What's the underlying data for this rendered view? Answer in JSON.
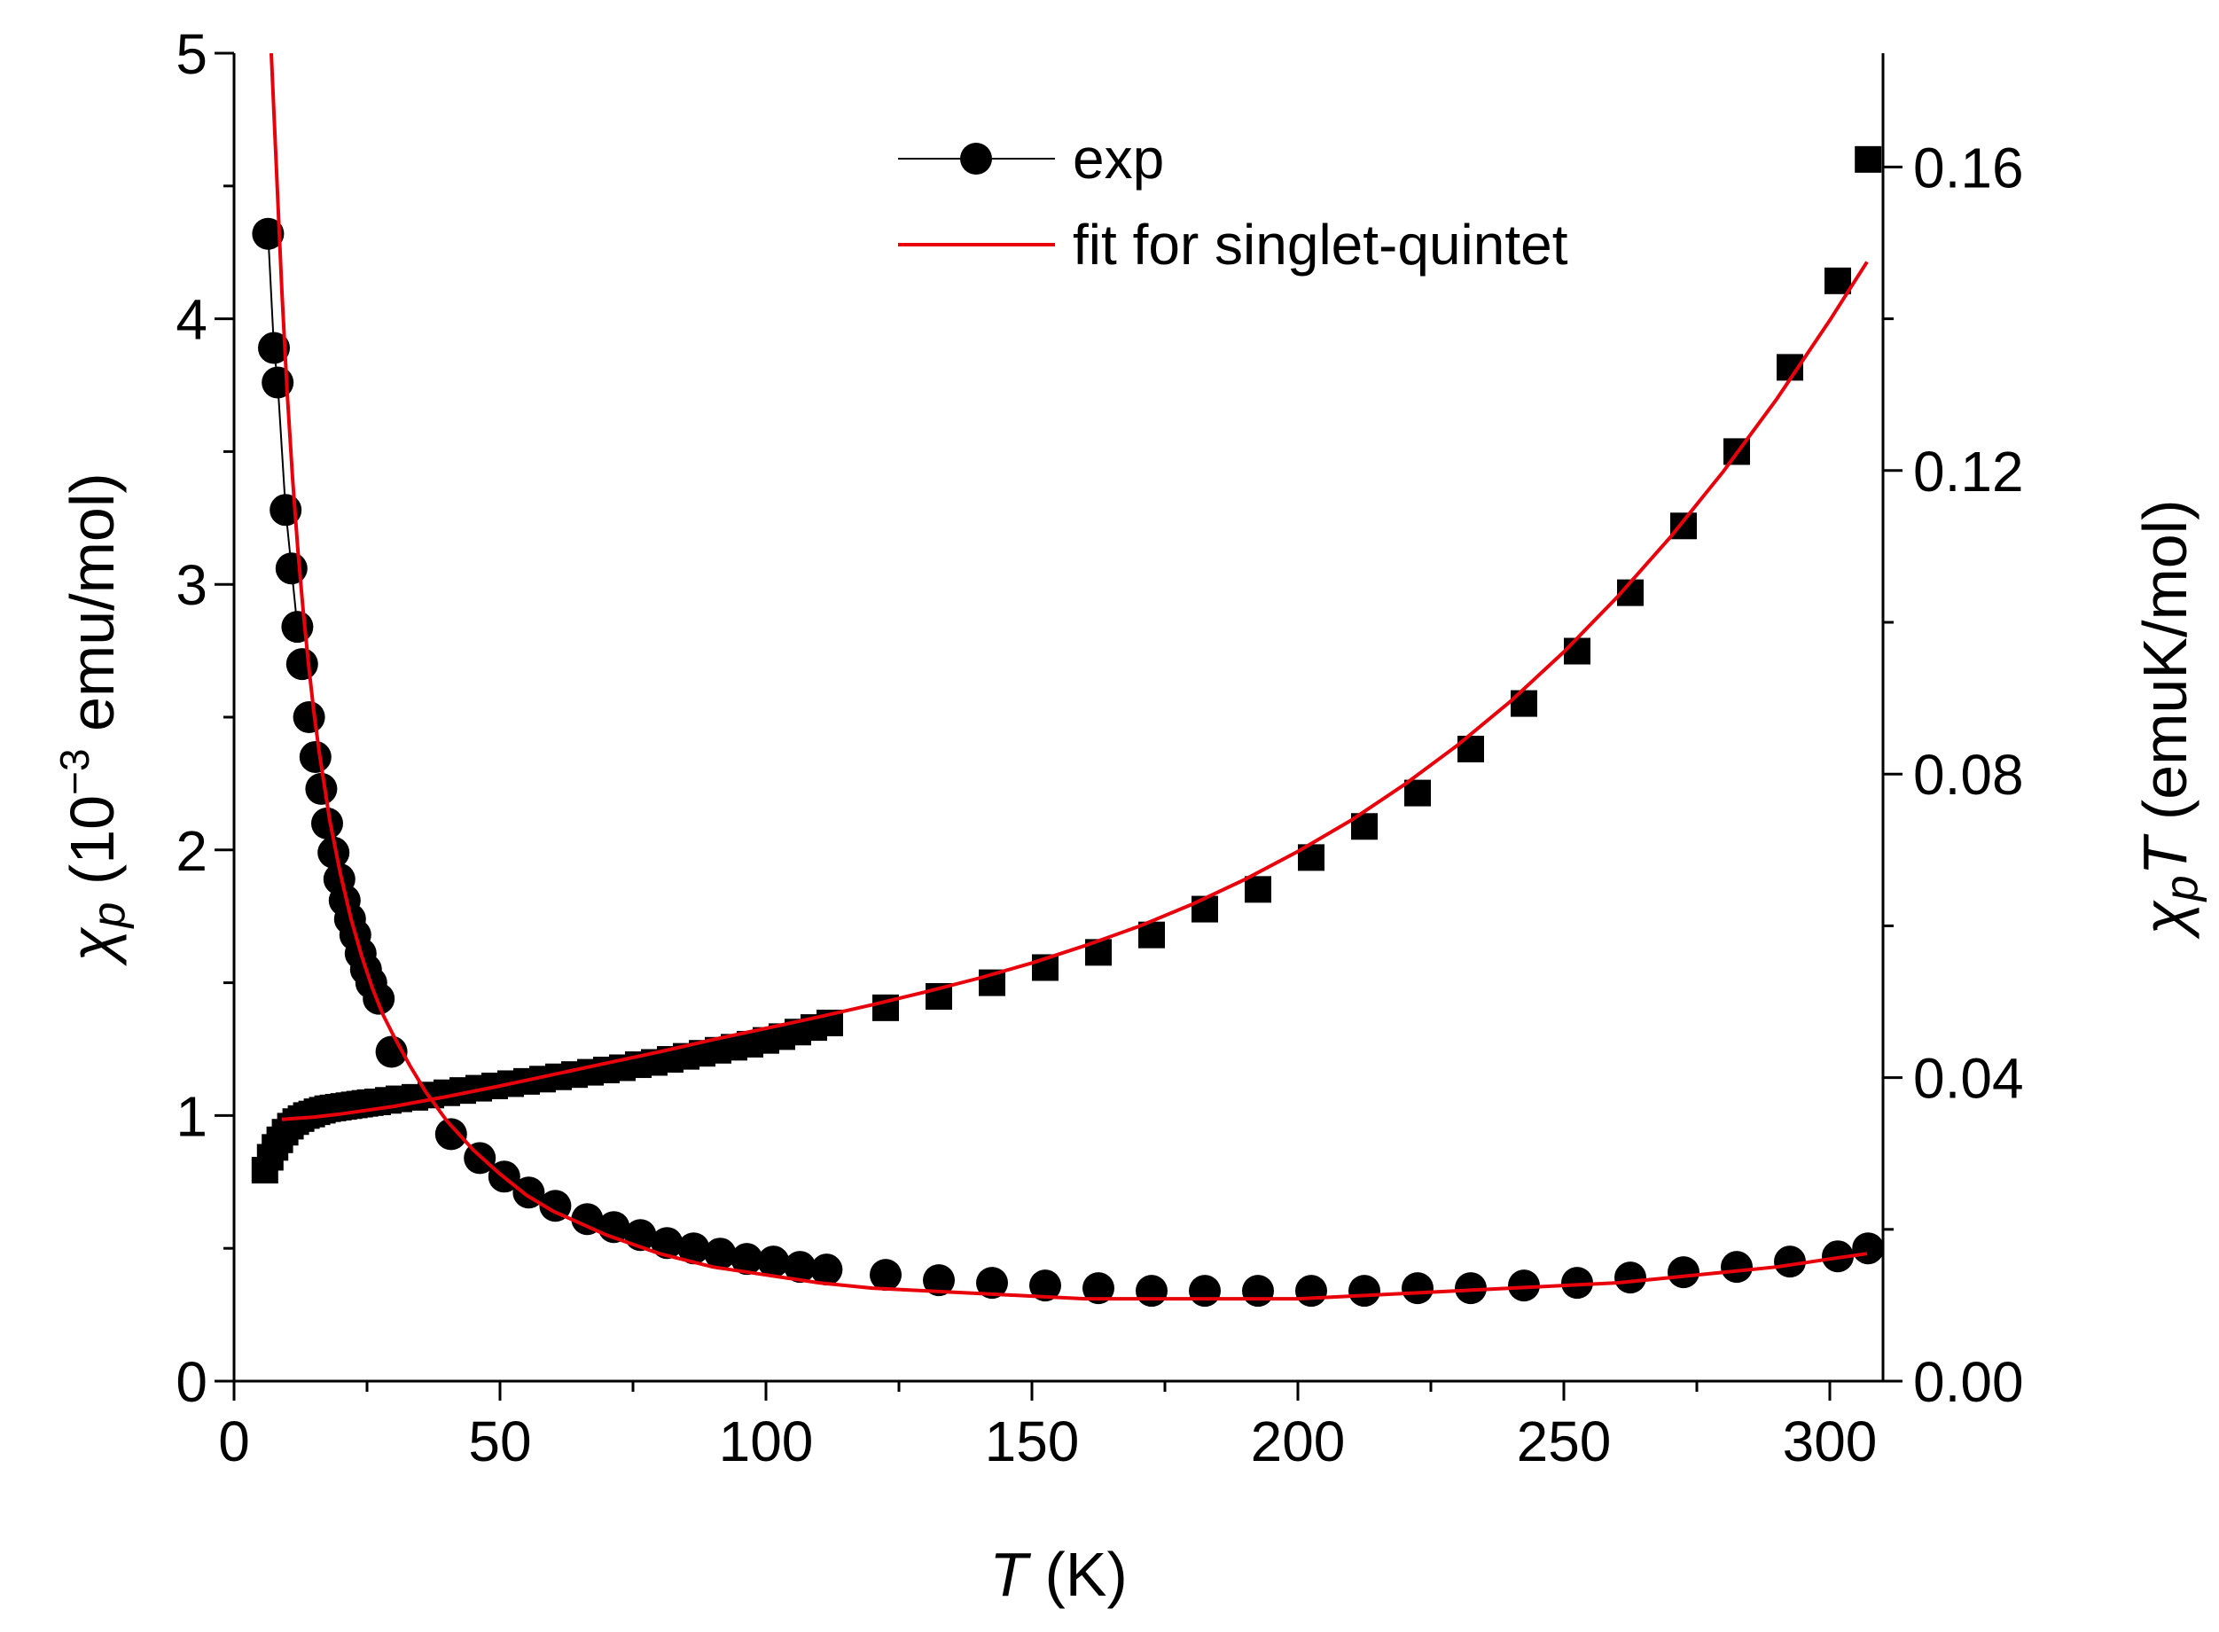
{
  "chart_data": {
    "type": "scatter",
    "xlabel": "T (K)",
    "xlabel_italic": "T",
    "xlabel_unit": " (K)",
    "ylabel_left": "χp (10⁻³ emu/mol)",
    "ylabel_left_symbol": "χ",
    "ylabel_left_sub": "p",
    "ylabel_left_unit": " (10",
    "ylabel_left_exp": "−3",
    "ylabel_left_unit2": " emu/mol)",
    "ylabel_right": "χpT (emuK/mol)",
    "ylabel_right_symbol": "χ",
    "ylabel_right_sub": "p",
    "ylabel_right_T": "T",
    "ylabel_right_unit": " (emuK/mol)",
    "xlim": [
      0,
      310
    ],
    "ylim_left": [
      0,
      5
    ],
    "ylim_right": [
      0,
      0.175
    ],
    "x_ticks": [
      "0",
      "50",
      "100",
      "150",
      "200",
      "250",
      "300"
    ],
    "y_left_ticks": [
      "0",
      "1",
      "2",
      "3",
      "4",
      "5"
    ],
    "y_right_ticks": [
      "0.00",
      "0.04",
      "0.08",
      "0.12",
      "0.16"
    ],
    "grid": false,
    "legend_position": "top-center",
    "legend": [
      {
        "label": "exp",
        "style": "black line with filled circle"
      },
      {
        "label": "fit for singlet-quintet",
        "style": "red line"
      }
    ],
    "colors": {
      "exp": "#000000",
      "fit": "#e8000b"
    },
    "series": [
      {
        "name": "exp",
        "axis": "left",
        "marker": "circle",
        "x": [
          6.4,
          7.5,
          8.2,
          9.7,
          10.8,
          11.9,
          12.8,
          14.1,
          15.3,
          16.4,
          17.5,
          18.7,
          19.8,
          20.8,
          21.8,
          22.8,
          23.8,
          24.8,
          25.8,
          27.2,
          29.6,
          40.8,
          46.2,
          50.8,
          55.4,
          60.4,
          66.4,
          71.4,
          76.4,
          81.4,
          86.4,
          91.4,
          96.4,
          101.4,
          106.4,
          111.4,
          122.5,
          132.5,
          142.5,
          152.5,
          162.5,
          172.5,
          182.5,
          192.5,
          202.5,
          212.5,
          222.5,
          232.5,
          242.5,
          252.5,
          262.5,
          272.5,
          282.5,
          292.5,
          301.5,
          307.2
        ],
        "y": [
          4.32,
          3.89,
          3.76,
          3.28,
          3.06,
          2.84,
          2.7,
          2.5,
          2.35,
          2.23,
          2.1,
          1.99,
          1.89,
          1.81,
          1.74,
          1.68,
          1.61,
          1.55,
          1.5,
          1.44,
          1.24,
          0.93,
          0.84,
          0.77,
          0.71,
          0.66,
          0.61,
          0.58,
          0.55,
          0.52,
          0.5,
          0.48,
          0.46,
          0.45,
          0.43,
          0.42,
          0.4,
          0.38,
          0.37,
          0.36,
          0.35,
          0.34,
          0.34,
          0.34,
          0.34,
          0.34,
          0.35,
          0.35,
          0.36,
          0.37,
          0.39,
          0.41,
          0.43,
          0.45,
          0.47,
          0.5
        ]
      },
      {
        "name": "",
        "axis": "right",
        "marker": "square",
        "x": [
          5.8,
          6.8,
          7.7,
          8.6,
          9.6,
          10.6,
          11.6,
          12.6,
          13.6,
          14.6,
          15.6,
          16.6,
          17.6,
          18.6,
          19.6,
          20.6,
          21.6,
          22.6,
          23.6,
          24.6,
          25.6,
          27.0,
          29.0,
          31.0,
          34.0,
          37.0,
          40.0,
          43.0,
          46.0,
          49.0,
          52.0,
          55.0,
          58.0,
          61.0,
          64.0,
          67.0,
          70.0,
          73.0,
          76.0,
          79.0,
          82.0,
          85.0,
          88.0,
          91.0,
          94.0,
          97.0,
          100.0,
          103.0,
          106.0,
          109.0,
          112.0,
          122.5,
          132.5,
          142.5,
          152.5,
          162.5,
          172.5,
          182.5,
          192.5,
          202.5,
          212.5,
          222.5,
          232.5,
          242.5,
          252.5,
          262.5,
          272.5,
          282.5,
          292.5,
          301.5,
          307.2
        ],
        "y": [
          0.0278,
          0.0295,
          0.0308,
          0.0318,
          0.0328,
          0.0336,
          0.0342,
          0.0346,
          0.035,
          0.0352,
          0.0355,
          0.0357,
          0.0359,
          0.036,
          0.0361,
          0.0362,
          0.0363,
          0.0364,
          0.0365,
          0.0366,
          0.0367,
          0.0368,
          0.037,
          0.0372,
          0.0374,
          0.0377,
          0.038,
          0.0383,
          0.0386,
          0.0389,
          0.0392,
          0.0395,
          0.0398,
          0.0401,
          0.0404,
          0.0407,
          0.041,
          0.0413,
          0.0417,
          0.042,
          0.0424,
          0.0428,
          0.0432,
          0.0436,
          0.044,
          0.0444,
          0.0449,
          0.0454,
          0.046,
          0.0466,
          0.0472,
          0.0492,
          0.0507,
          0.0525,
          0.0545,
          0.0565,
          0.0588,
          0.0622,
          0.0648,
          0.069,
          0.0731,
          0.0775,
          0.0833,
          0.0893,
          0.0962,
          0.1039,
          0.1127,
          0.1225,
          0.1336,
          0.145,
          0.161
        ]
      }
    ],
    "fit": {
      "name": "fit for singlet-quintet",
      "chi_left": {
        "x": [
          7.0,
          8.0,
          9.0,
          10.0,
          11.0,
          12.0,
          13.0,
          14.0,
          15.0,
          16.0,
          18.0,
          20.0,
          22.0,
          24.0,
          26.0,
          28.0,
          30.0,
          33.0,
          36.0,
          40.0,
          45.0,
          50.0,
          55.0,
          60.0,
          70.0,
          80.0,
          90.0,
          100.0,
          110.0,
          120.0,
          130.0,
          140.0,
          150.0,
          160.0,
          170.0,
          180.0,
          190.0,
          200.0,
          210.0,
          220.0,
          230.0,
          240.0,
          250.0,
          260.0,
          270.0,
          280.0,
          290.0,
          300.0,
          307.0
        ],
        "y": [
          5.0,
          4.55,
          4.1,
          3.72,
          3.4,
          3.13,
          2.9,
          2.7,
          2.52,
          2.37,
          2.11,
          1.91,
          1.74,
          1.6,
          1.48,
          1.38,
          1.3,
          1.19,
          1.09,
          0.98,
          0.87,
          0.78,
          0.7,
          0.64,
          0.55,
          0.48,
          0.43,
          0.4,
          0.37,
          0.35,
          0.34,
          0.33,
          0.32,
          0.31,
          0.31,
          0.31,
          0.31,
          0.31,
          0.32,
          0.33,
          0.34,
          0.35,
          0.36,
          0.37,
          0.39,
          0.41,
          0.43,
          0.46,
          0.48
        ]
      },
      "chiT_right": {
        "x": [
          9.0,
          15.0,
          20.0,
          30.0,
          40.0,
          50.0,
          60.0,
          70.0,
          80.0,
          90.0,
          100.0,
          110.0,
          120.0,
          130.0,
          140.0,
          150.0,
          160.0,
          170.0,
          180.0,
          190.0,
          200.0,
          210.0,
          220.0,
          230.0,
          240.0,
          250.0,
          260.0,
          270.0,
          280.0,
          290.0,
          300.0,
          307.0
        ],
        "y": [
          0.0345,
          0.0348,
          0.0352,
          0.0362,
          0.0375,
          0.0389,
          0.0404,
          0.0419,
          0.0434,
          0.045,
          0.0465,
          0.048,
          0.0496,
          0.0513,
          0.0531,
          0.0551,
          0.0574,
          0.0599,
          0.0628,
          0.0661,
          0.0698,
          0.0739,
          0.0786,
          0.0838,
          0.0896,
          0.0961,
          0.1033,
          0.1112,
          0.1199,
          0.1294,
          0.1398,
          0.1475
        ]
      }
    }
  }
}
